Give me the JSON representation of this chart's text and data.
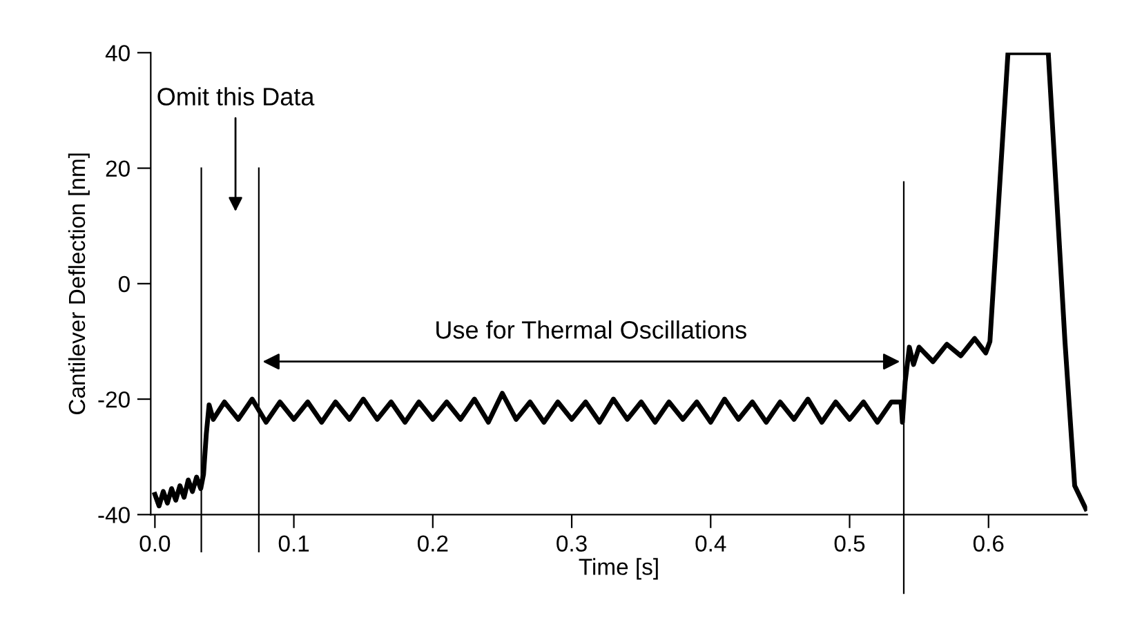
{
  "chart_data": {
    "type": "line",
    "xlabel": "Time [s]",
    "ylabel": "Cantilever Deflection [nm]",
    "xlim": [
      -0.003,
      0.671
    ],
    "ylim": [
      -40,
      40
    ],
    "xticks": [
      {
        "value": 0,
        "label": "0.0"
      },
      0.1,
      0.2,
      0.3,
      0.4,
      0.5,
      0.6
    ],
    "yticks": [
      -40,
      -20,
      0,
      20,
      40
    ],
    "grid": false,
    "legend": false,
    "marker": "none",
    "line_style": "solid",
    "series": [
      {
        "color": "#000000",
        "x": [
          0,
          0.003,
          0.006,
          0.009,
          0.012,
          0.015,
          0.018,
          0.021,
          0.024,
          0.027,
          0.03,
          0.033,
          0.035,
          0.037,
          0.039,
          0.042,
          0.05,
          0.06,
          0.07,
          0.08,
          0.09,
          0.1,
          0.11,
          0.12,
          0.13,
          0.14,
          0.15,
          0.16,
          0.17,
          0.18,
          0.19,
          0.2,
          0.21,
          0.22,
          0.23,
          0.24,
          0.25,
          0.26,
          0.27,
          0.28,
          0.29,
          0.3,
          0.31,
          0.32,
          0.33,
          0.34,
          0.35,
          0.36,
          0.37,
          0.38,
          0.39,
          0.4,
          0.41,
          0.42,
          0.43,
          0.44,
          0.45,
          0.46,
          0.47,
          0.48,
          0.49,
          0.5,
          0.51,
          0.52,
          0.53,
          0.537,
          0.538,
          0.54,
          0.543,
          0.546,
          0.55,
          0.56,
          0.57,
          0.58,
          0.59,
          0.598,
          0.601,
          0.614,
          0.643,
          0.655,
          0.662,
          0.666,
          0.67
        ],
        "values": [
          -36.5,
          -38.5,
          -36,
          -38,
          -35.5,
          -37.5,
          -35,
          -37,
          -34,
          -36,
          -33.5,
          -35.5,
          -33,
          -26,
          -21,
          -23.5,
          -20.5,
          -23.5,
          -20,
          -24,
          -20.5,
          -23.5,
          -20.5,
          -24,
          -20.5,
          -23.5,
          -20,
          -23.5,
          -20.5,
          -24,
          -20.5,
          -23.5,
          -20.5,
          -23.5,
          -20,
          -24,
          -19,
          -23.5,
          -20.5,
          -24,
          -20.5,
          -23.5,
          -20.5,
          -24,
          -20,
          -23.5,
          -20.5,
          -24,
          -20.5,
          -23.5,
          -20.5,
          -24,
          -20,
          -23.5,
          -20.5,
          -24,
          -20.5,
          -23.5,
          -20,
          -24,
          -20.5,
          -23.5,
          -20.5,
          -24,
          -20.5,
          -20.5,
          -24,
          -17,
          -11,
          -14,
          -11,
          -13.5,
          -10.5,
          -12.5,
          -9.5,
          -12,
          -10,
          40,
          40,
          -10,
          -35,
          -37,
          -39
        ]
      }
    ],
    "ref_lines": [
      {
        "axis": "x",
        "value": 0.0334,
        "color": "#000000"
      },
      {
        "axis": "x",
        "value": 0.0748,
        "color": "#000000"
      },
      {
        "axis": "x",
        "value": 0.539,
        "color": "#000000"
      }
    ],
    "annotations": [
      "Omit this Data",
      "Use for Thermal Oscillations"
    ]
  }
}
